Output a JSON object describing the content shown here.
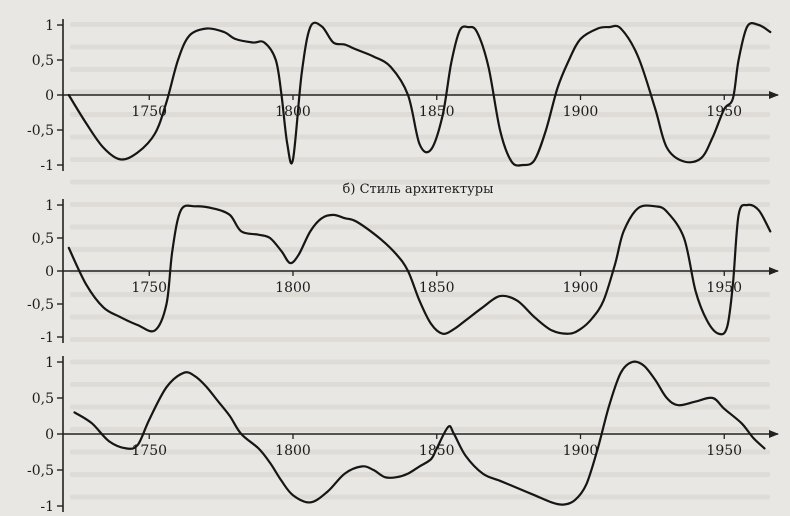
{
  "chart_data": [
    {
      "type": "line",
      "title": "",
      "xlabel": "",
      "ylabel": "",
      "xlim": [
        1720,
        1968
      ],
      "ylim": [
        -1,
        1
      ],
      "x_ticks": [
        "1750",
        "1800",
        "1850",
        "1900",
        "1950"
      ],
      "y_ticks": [
        "1",
        "0,5",
        "0",
        "-0,5",
        "-1"
      ],
      "grid": false,
      "axis_arrow": true,
      "series": [
        {
          "x": [
            1722,
            1728,
            1734,
            1740,
            1746,
            1752,
            1756,
            1760,
            1764,
            1770,
            1776,
            1780,
            1786,
            1790,
            1794,
            1796,
            1798,
            1800,
            1803,
            1806,
            1810,
            1814,
            1818,
            1822,
            1828,
            1834,
            1840,
            1844,
            1848,
            1852,
            1855,
            1858,
            1861,
            1864,
            1868,
            1872,
            1876,
            1880,
            1884,
            1888,
            1892,
            1896,
            1900,
            1906,
            1910,
            1914,
            1920,
            1926,
            1930,
            1936,
            1942,
            1946,
            1950,
            1953,
            1955,
            1958,
            1962,
            1966
          ],
          "y": [
            0.0,
            -0.4,
            -0.75,
            -0.92,
            -0.82,
            -0.55,
            -0.1,
            0.5,
            0.85,
            0.95,
            0.9,
            0.8,
            0.75,
            0.75,
            0.5,
            0.0,
            -0.7,
            -0.92,
            0.3,
            0.97,
            0.98,
            0.75,
            0.72,
            0.65,
            0.55,
            0.4,
            0.0,
            -0.7,
            -0.78,
            -0.3,
            0.45,
            0.92,
            0.97,
            0.9,
            0.4,
            -0.5,
            -0.95,
            -1.0,
            -0.93,
            -0.5,
            0.1,
            0.5,
            0.8,
            0.95,
            0.97,
            0.95,
            0.55,
            -0.2,
            -0.75,
            -0.95,
            -0.9,
            -0.6,
            -0.2,
            -0.05,
            0.5,
            0.98,
            1.0,
            0.9
          ]
        }
      ]
    },
    {
      "type": "line",
      "title": "б) Стиль архитектуры",
      "xlabel": "",
      "ylabel": "",
      "xlim": [
        1720,
        1968
      ],
      "ylim": [
        -1,
        1
      ],
      "x_ticks": [
        "1750",
        "1800",
        "1850",
        "1900",
        "1950"
      ],
      "y_ticks": [
        "1",
        "0,5",
        "0",
        "-0,5",
        "-1"
      ],
      "grid": false,
      "axis_arrow": true,
      "series": [
        {
          "x": [
            1722,
            1728,
            1734,
            1740,
            1746,
            1752,
            1756,
            1758,
            1761,
            1766,
            1772,
            1778,
            1782,
            1788,
            1792,
            1796,
            1799,
            1802,
            1806,
            1810,
            1814,
            1818,
            1822,
            1830,
            1836,
            1840,
            1844,
            1848,
            1852,
            1856,
            1860,
            1866,
            1872,
            1878,
            1884,
            1890,
            1896,
            1900,
            1904,
            1908,
            1912,
            1915,
            1920,
            1926,
            1930,
            1936,
            1940,
            1944,
            1948,
            1951,
            1953,
            1955,
            1958,
            1962,
            1966
          ],
          "y": [
            0.35,
            -0.2,
            -0.55,
            -0.7,
            -0.82,
            -0.9,
            -0.5,
            0.3,
            0.92,
            0.98,
            0.95,
            0.85,
            0.6,
            0.55,
            0.5,
            0.3,
            0.12,
            0.25,
            0.6,
            0.8,
            0.85,
            0.8,
            0.75,
            0.5,
            0.25,
            0.0,
            -0.45,
            -0.8,
            -0.95,
            -0.88,
            -0.75,
            -0.55,
            -0.38,
            -0.45,
            -0.7,
            -0.9,
            -0.95,
            -0.88,
            -0.72,
            -0.45,
            0.1,
            0.6,
            0.95,
            0.98,
            0.9,
            0.5,
            -0.3,
            -0.75,
            -0.95,
            -0.85,
            -0.2,
            0.85,
            1.0,
            0.92,
            0.6
          ]
        }
      ]
    },
    {
      "type": "line",
      "title": "",
      "xlabel": "",
      "ylabel": "",
      "xlim": [
        1720,
        1968
      ],
      "ylim": [
        -1,
        1
      ],
      "x_ticks": [
        "1750",
        "1800",
        "1850",
        "1900",
        "1950"
      ],
      "y_ticks": [
        "1",
        "0,5",
        "0",
        "-0,5",
        "-1"
      ],
      "grid": false,
      "axis_arrow": true,
      "series": [
        {
          "x": [
            1724,
            1730,
            1736,
            1742,
            1746,
            1750,
            1756,
            1762,
            1766,
            1770,
            1774,
            1778,
            1782,
            1788,
            1792,
            1796,
            1800,
            1806,
            1812,
            1818,
            1824,
            1828,
            1832,
            1836,
            1840,
            1844,
            1848,
            1850,
            1854,
            1856,
            1860,
            1866,
            1872,
            1878,
            1884,
            1890,
            1894,
            1898,
            1902,
            1906,
            1910,
            1914,
            1918,
            1922,
            1926,
            1930,
            1934,
            1940,
            1946,
            1950,
            1956,
            1960,
            1964
          ],
          "y": [
            0.3,
            0.15,
            -0.1,
            -0.2,
            -0.15,
            0.2,
            0.65,
            0.85,
            0.8,
            0.65,
            0.45,
            0.25,
            0.0,
            -0.2,
            -0.4,
            -0.65,
            -0.85,
            -0.95,
            -0.8,
            -0.55,
            -0.45,
            -0.5,
            -0.6,
            -0.6,
            -0.55,
            -0.45,
            -0.35,
            -0.2,
            0.1,
            0.0,
            -0.3,
            -0.55,
            -0.65,
            -0.75,
            -0.85,
            -0.95,
            -0.98,
            -0.92,
            -0.7,
            -0.2,
            0.4,
            0.85,
            1.0,
            0.95,
            0.75,
            0.5,
            0.4,
            0.45,
            0.5,
            0.35,
            0.15,
            -0.05,
            -0.2
          ]
        }
      ]
    }
  ]
}
